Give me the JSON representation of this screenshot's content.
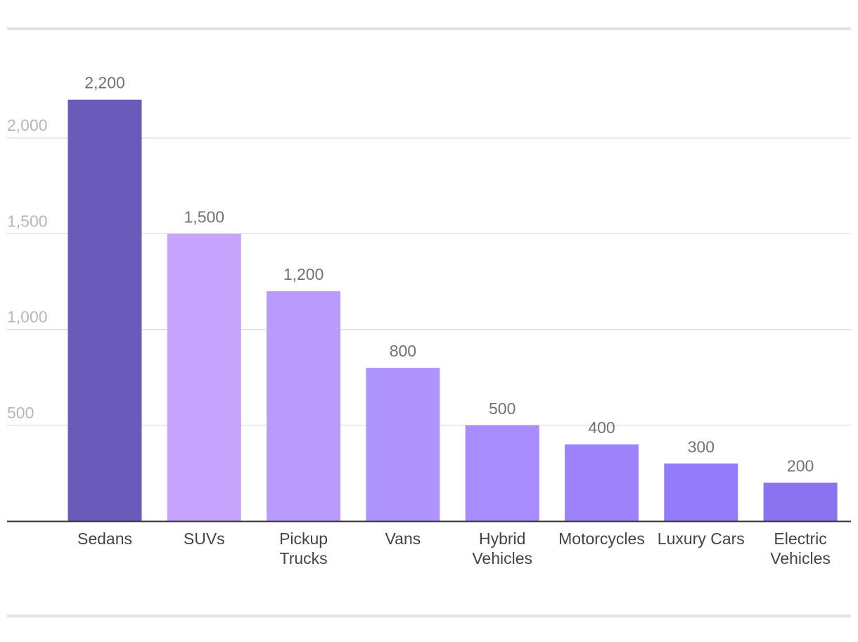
{
  "chart_data": {
    "type": "bar",
    "title": "",
    "xlabel": "",
    "ylabel": "",
    "categories": [
      "Sedans",
      "SUVs",
      "Pickup Trucks",
      "Vans",
      "Hybrid Vehicles",
      "Motorcycles",
      "Luxury Cars",
      "Electric Vehicles"
    ],
    "category_lines": [
      [
        "Sedans"
      ],
      [
        "SUVs"
      ],
      [
        "Pickup",
        "Trucks"
      ],
      [
        "Vans"
      ],
      [
        "Hybrid",
        "Vehicles"
      ],
      [
        "Motorcycles"
      ],
      [
        "Luxury Cars"
      ],
      [
        "Electric",
        "Vehicles"
      ]
    ],
    "values": [
      2200,
      1500,
      1200,
      800,
      500,
      400,
      300,
      200
    ],
    "value_labels": [
      "2,200",
      "1,500",
      "1,200",
      "800",
      "500",
      "400",
      "300",
      "200"
    ],
    "bar_colors": [
      "#6a5ab9",
      "#c6a4fd",
      "#b99bfd",
      "#b094fd",
      "#a68cfc",
      "#9c83fb",
      "#947bfa",
      "#8b73f0"
    ],
    "ylim": [
      0,
      2500
    ],
    "yticks": [
      500,
      1000,
      1500,
      2000
    ],
    "ytick_labels": [
      "500",
      "1,000",
      "1,500",
      "2,000"
    ],
    "grid": true,
    "legend": "none"
  }
}
